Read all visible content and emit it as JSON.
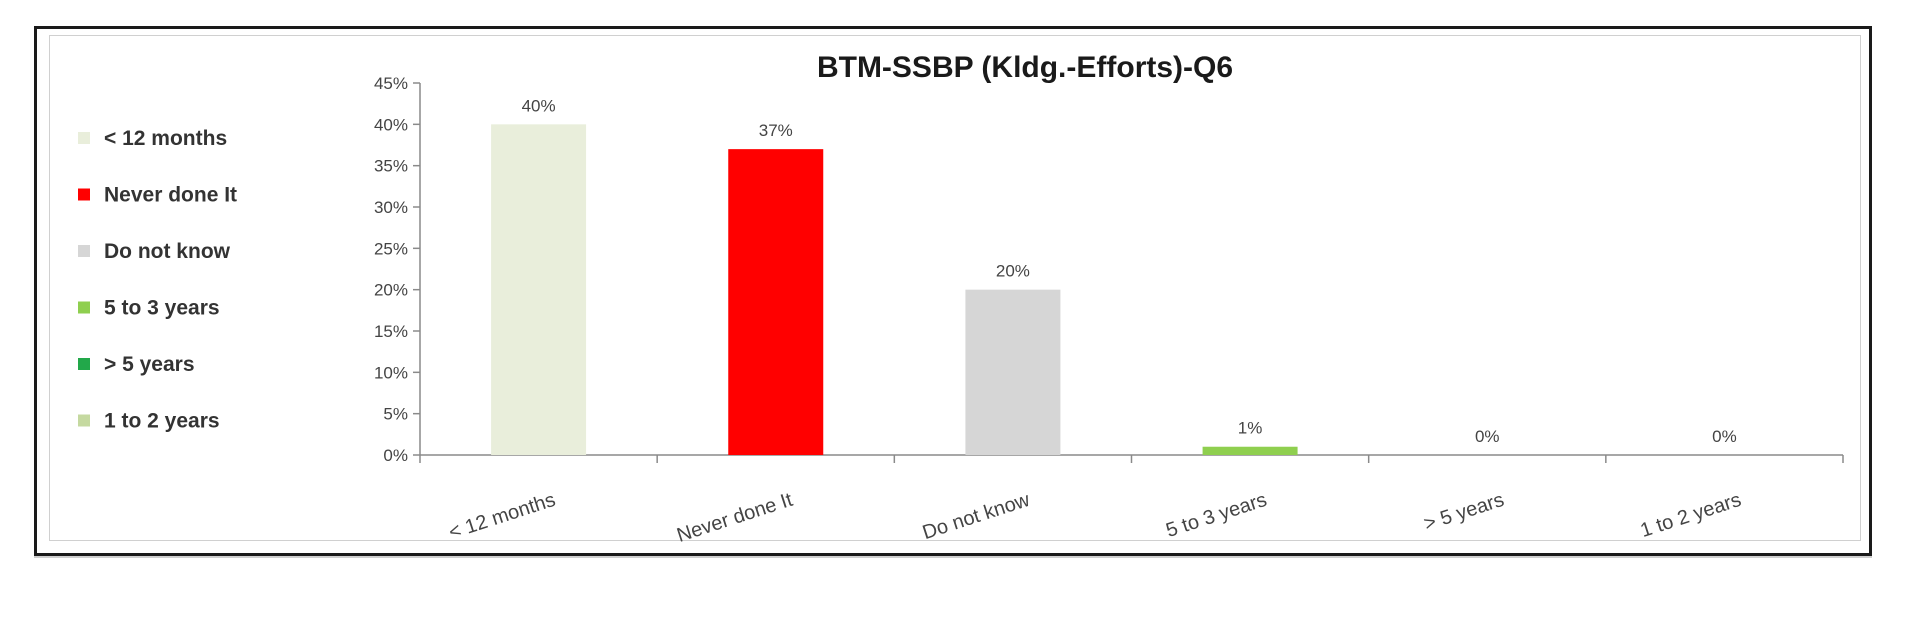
{
  "chart_data": {
    "type": "bar",
    "title": "BTM-SSBP  (Kldg.-Efforts)-Q6",
    "categories": [
      "< 12 months",
      "Never done It",
      "Do not know",
      "5 to 3 years",
      "> 5 years",
      "1 to 2 years"
    ],
    "values": [
      40,
      37,
      20,
      1,
      0,
      0
    ],
    "data_labels": [
      "40%",
      "37%",
      "20%",
      "1%",
      "0%",
      "0%"
    ],
    "colors": [
      "#e9eedb",
      "#ff0000",
      "#d6d6d6",
      "#8fcf4f",
      "#22a84a",
      "#c5d9a0"
    ],
    "ylim": [
      0,
      45
    ],
    "yticks": [
      0,
      5,
      10,
      15,
      20,
      25,
      30,
      35,
      40,
      45
    ],
    "ytick_labels": [
      "0%",
      "5%",
      "10%",
      "15%",
      "20%",
      "25%",
      "30%",
      "35%",
      "40%",
      "45%"
    ],
    "xlabel": "",
    "ylabel": "",
    "grid": false,
    "legend": {
      "position": "left",
      "entries": [
        "< 12 months",
        "Never done It",
        "Do not know",
        "5 to 3 years",
        "> 5 years",
        "1 to 2 years"
      ]
    }
  }
}
